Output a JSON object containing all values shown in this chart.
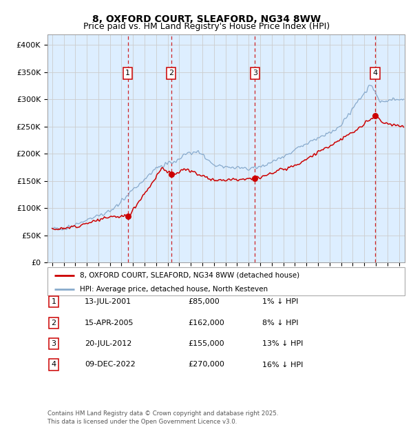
{
  "title": "8, OXFORD COURT, SLEAFORD, NG34 8WW",
  "subtitle": "Price paid vs. HM Land Registry's House Price Index (HPI)",
  "bg_color": "#ddeeff",
  "legend_label_red": "8, OXFORD COURT, SLEAFORD, NG34 8WW (detached house)",
  "legend_label_blue": "HPI: Average price, detached house, North Kesteven",
  "footer": "Contains HM Land Registry data © Crown copyright and database right 2025.\nThis data is licensed under the Open Government Licence v3.0.",
  "transactions": [
    {
      "num": 1,
      "date": "13-JUL-2001",
      "price": 85000,
      "hpi_diff": "1% ↓ HPI",
      "x": 2001.54
    },
    {
      "num": 2,
      "date": "15-APR-2005",
      "price": 162000,
      "hpi_diff": "8% ↓ HPI",
      "x": 2005.29
    },
    {
      "num": 3,
      "date": "20-JUL-2012",
      "price": 155000,
      "hpi_diff": "13% ↓ HPI",
      "x": 2012.55
    },
    {
      "num": 4,
      "date": "09-DEC-2022",
      "price": 270000,
      "hpi_diff": "16% ↓ HPI",
      "x": 2022.94
    }
  ],
  "ylim": [
    0,
    420000
  ],
  "xlim": [
    1994.6,
    2025.5
  ],
  "yticks": [
    0,
    50000,
    100000,
    150000,
    200000,
    250000,
    300000,
    350000,
    400000
  ],
  "ytick_labels": [
    "£0",
    "£50K",
    "£100K",
    "£150K",
    "£200K",
    "£250K",
    "£300K",
    "£350K",
    "£400K"
  ],
  "red_color": "#cc0000",
  "blue_color": "#88aacc",
  "dot_color": "#cc0000",
  "vline_color": "#cc0000",
  "box_color": "#cc0000",
  "grid_color": "#cccccc",
  "title_fontsize": 10,
  "subtitle_fontsize": 9
}
